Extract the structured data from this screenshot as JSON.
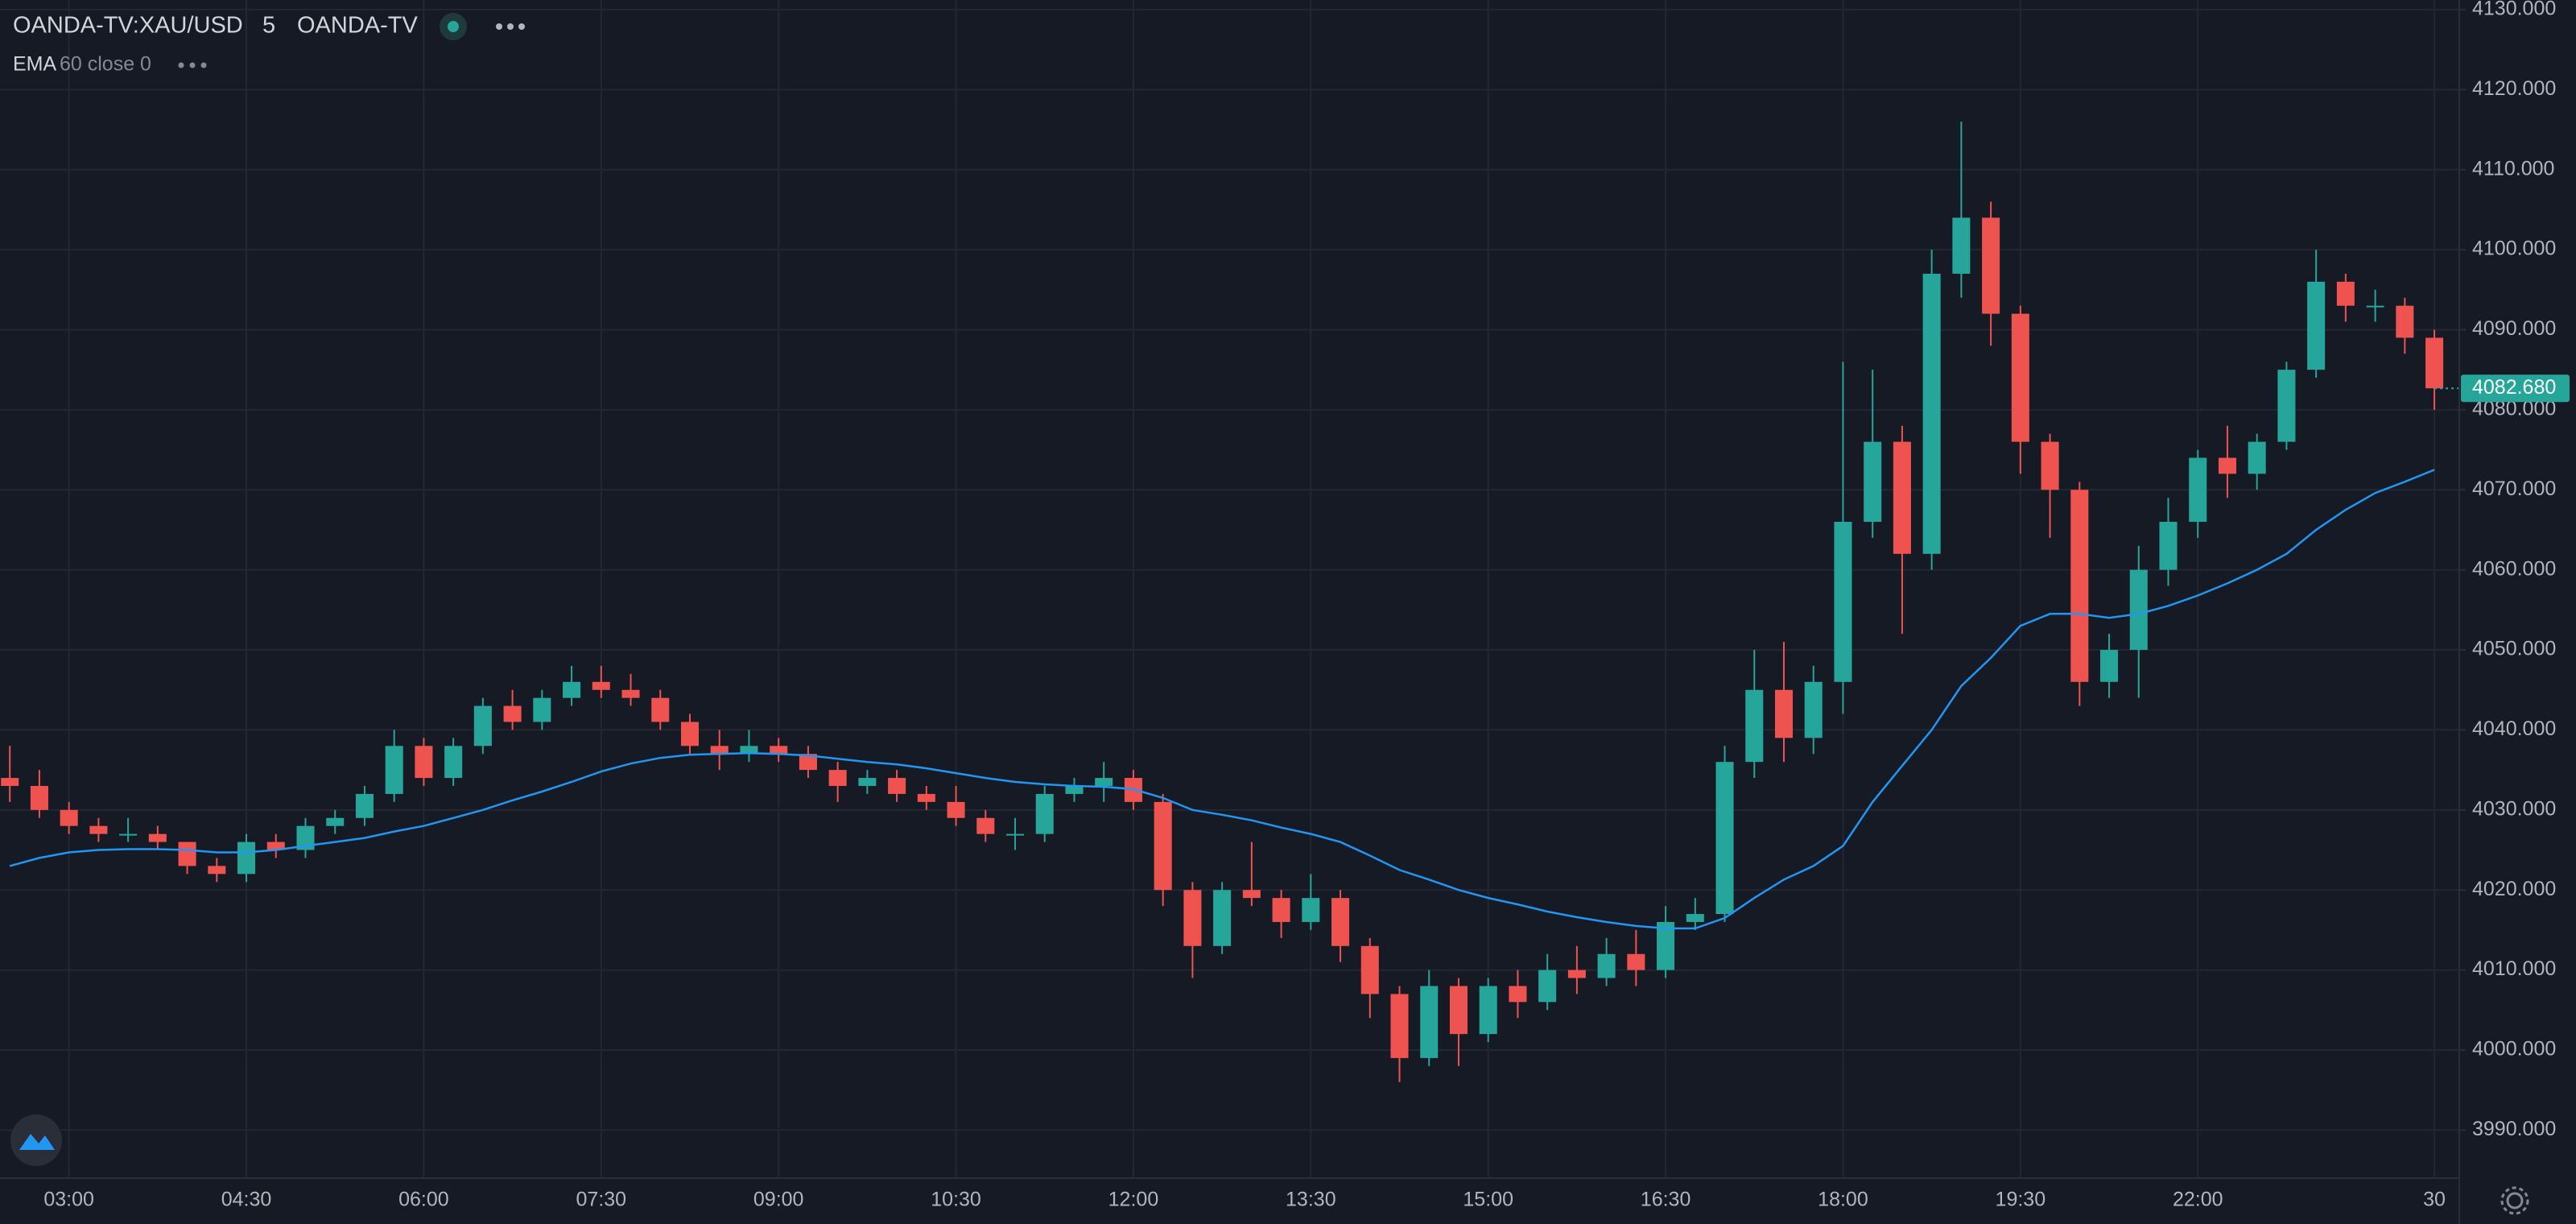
{
  "chart_data": {
    "type": "candlestick",
    "title": "OANDA-TV:XAU/USD",
    "interval": "5",
    "source": "OANDA-TV",
    "categories": [
      null,
      null,
      "03:00",
      null,
      null,
      null,
      null,
      null,
      "04:30",
      null,
      null,
      null,
      null,
      null,
      "06:00",
      null,
      null,
      null,
      null,
      null,
      "07:30",
      null,
      null,
      null,
      null,
      null,
      "09:00",
      null,
      null,
      null,
      null,
      null,
      "10:30",
      null,
      null,
      null,
      null,
      null,
      "12:00",
      null,
      null,
      null,
      null,
      null,
      "13:30",
      null,
      null,
      null,
      null,
      null,
      "15:00",
      null,
      null,
      null,
      null,
      null,
      "16:30",
      null,
      null,
      null,
      null,
      null,
      "18:00",
      null,
      null,
      null,
      null,
      null,
      "19:30",
      null,
      null,
      null,
      null,
      null,
      "22:00",
      null,
      null,
      null,
      null,
      null,
      null,
      null,
      "30"
    ],
    "open": [
      4034,
      4033,
      4030,
      4028,
      4027,
      4027,
      4026,
      4023,
      4022,
      4026,
      4025,
      4028,
      4029,
      4032,
      4038,
      4034,
      4038,
      4043,
      4041,
      4044,
      4046,
      4045,
      4044,
      4041,
      4038,
      4037,
      4038,
      4037,
      4035,
      4033,
      4034,
      4032,
      4031,
      4029,
      4027,
      4027,
      4032,
      4033,
      4034,
      4031,
      4020,
      4013,
      4020,
      4019,
      4016,
      4019,
      4013,
      4007,
      3999,
      4008,
      4002,
      4008,
      4006,
      4010,
      4009,
      4012,
      4010,
      4016,
      4017,
      4036,
      4045,
      4039,
      4046,
      4066,
      4076,
      4062,
      4097,
      4104,
      4092,
      4076,
      4070,
      4046,
      4050,
      4060,
      4066,
      4074,
      4072,
      4076,
      4085,
      4096,
      4093,
      4093,
      4089
    ],
    "high": [
      4038,
      4035,
      4031,
      4029,
      4029,
      4028,
      4026,
      4024,
      4027,
      4027,
      4029,
      4030,
      4033,
      4040,
      4039,
      4039,
      4044,
      4045,
      4045,
      4048,
      4048,
      4047,
      4045,
      4042,
      4040,
      4040,
      4039,
      4038,
      4036,
      4035,
      4035,
      4033,
      4033,
      4030,
      4029,
      4033,
      4034,
      4036,
      4035,
      4032,
      4021,
      4021,
      4026,
      4020,
      4022,
      4020,
      4014,
      4008,
      4010,
      4009,
      4009,
      4010,
      4012,
      4013,
      4014,
      4015,
      4018,
      4019,
      4038,
      4050,
      4051,
      4048,
      4086,
      4085,
      4078,
      4100,
      4116,
      4106,
      4093,
      4077,
      4071,
      4052,
      4063,
      4069,
      4075,
      4078,
      4077,
      4086,
      4100,
      4097,
      4095,
      4094,
      4090
    ],
    "low": [
      4031,
      4029,
      4027,
      4026,
      4026,
      4025,
      4022,
      4021,
      4021,
      4024,
      4024,
      4027,
      4028,
      4031,
      4033,
      4033,
      4037,
      4040,
      4040,
      4043,
      4044,
      4043,
      4040,
      4037,
      4035,
      4036,
      4036,
      4034,
      4031,
      4032,
      4031,
      4030,
      4028,
      4026,
      4025,
      4026,
      4031,
      4031,
      4030,
      4018,
      4009,
      4012,
      4018,
      4014,
      4015,
      4011,
      4004,
      3996,
      3998,
      3998,
      4001,
      4004,
      4005,
      4007,
      4008,
      4008,
      4009,
      4015,
      4016,
      4034,
      4036,
      4037,
      4042,
      4064,
      4052,
      4060,
      4094,
      4088,
      4072,
      4064,
      4043,
      4044,
      4044,
      4058,
      4064,
      4069,
      4070,
      4075,
      4084,
      4091,
      4091,
      4087,
      4080
    ],
    "close": [
      4033,
      4030,
      4028,
      4027,
      4027,
      4026,
      4023,
      4022,
      4026,
      4025,
      4028,
      4029,
      4032,
      4038,
      4034,
      4038,
      4043,
      4041,
      4044,
      4046,
      4045,
      4044,
      4041,
      4038,
      4037,
      4038,
      4037,
      4035,
      4033,
      4034,
      4032,
      4031,
      4029,
      4027,
      4027,
      4032,
      4033,
      4034,
      4031,
      4020,
      4013,
      4020,
      4019,
      4016,
      4019,
      4013,
      4007,
      3999,
      4008,
      4002,
      4008,
      4006,
      4010,
      4009,
      4012,
      4010,
      4016,
      4017,
      4036,
      4045,
      4039,
      4046,
      4066,
      4076,
      4062,
      4097,
      4104,
      4092,
      4076,
      4070,
      4046,
      4050,
      4060,
      4066,
      4074,
      4072,
      4076,
      4085,
      4096,
      4093,
      4093,
      4089,
      4082.68
    ],
    "last_value_label": "4082.680",
    "up_color": "#26a69a",
    "down_color": "#ef5350",
    "indicator": {
      "name": "EMA",
      "params": "60 close 0",
      "color": "#2196f3",
      "values": [
        4023,
        4024,
        4024.7,
        4025,
        4025.1,
        4025.1,
        4025,
        4024.7,
        4024.7,
        4025,
        4025.5,
        4026,
        4026.5,
        4027.3,
        4028,
        4029,
        4030,
        4031.2,
        4032.3,
        4033.5,
        4034.8,
        4035.8,
        4036.5,
        4036.9,
        4037,
        4037.1,
        4037,
        4036.8,
        4036.4,
        4036,
        4035.7,
        4035.2,
        4034.6,
        4034,
        4033.5,
        4033.2,
        4033,
        4032.9,
        4032.6,
        4031.5,
        4030,
        4029.4,
        4028.7,
        4027.8,
        4027,
        4026,
        4024.3,
        4022.5,
        4021.3,
        4020,
        4019,
        4018.2,
        4017.3,
        4016.6,
        4016,
        4015.5,
        4015.2,
        4015.2,
        4016.5,
        4019,
        4021.3,
        4023,
        4025.5,
        4031,
        4035.5,
        4040,
        4045.5,
        4049,
        4053,
        4054.5,
        4054.5,
        4054,
        4054.5,
        4055.5,
        4056.8,
        4058.3,
        4060,
        4062,
        4065,
        4067.5,
        4069.6,
        4071,
        4072.5
      ]
    },
    "ylim": [
      3984,
      4131.2
    ],
    "yticks": [
      {
        "value": 3990,
        "label": "3990.000"
      },
      {
        "value": 4000,
        "label": "4000.000"
      },
      {
        "value": 4010,
        "label": "4010.000"
      },
      {
        "value": 4020,
        "label": "4020.000"
      },
      {
        "value": 4030,
        "label": "4030.000"
      },
      {
        "value": 4040,
        "label": "4040.000"
      },
      {
        "value": 4050,
        "label": "4050.000"
      },
      {
        "value": 4060,
        "label": "4060.000"
      },
      {
        "value": 4070,
        "label": "4070.000"
      },
      {
        "value": 4080,
        "label": "4080.000"
      },
      {
        "value": 4090,
        "label": "4090.000"
      },
      {
        "value": 4100,
        "label": "4100.000"
      },
      {
        "value": 4110,
        "label": "4110.000"
      },
      {
        "value": 4120,
        "label": "4120.000"
      },
      {
        "value": 4130,
        "label": "4130.000"
      }
    ],
    "grid": true
  }
}
